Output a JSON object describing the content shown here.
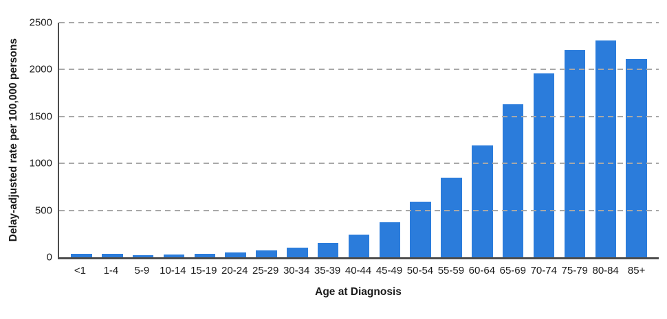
{
  "chart_data": {
    "type": "bar",
    "title": "",
    "xlabel": "Age at Diagnosis",
    "ylabel": "Delay-adjusted rate per 100,000 persons",
    "categories": [
      "<1",
      "1-4",
      "5-9",
      "10-14",
      "15-19",
      "20-24",
      "25-29",
      "30-34",
      "35-39",
      "40-44",
      "45-49",
      "50-54",
      "55-59",
      "60-64",
      "65-69",
      "70-74",
      "75-79",
      "80-84",
      "85+"
    ],
    "values": [
      40,
      35,
      25,
      30,
      37,
      50,
      75,
      105,
      155,
      240,
      375,
      590,
      850,
      1190,
      1630,
      1960,
      2210,
      2310,
      2115
    ],
    "ylim": [
      0,
      2500
    ],
    "yticks": [
      0,
      500,
      1000,
      1500,
      2000,
      2500
    ],
    "grid": "horizontal-dashed",
    "legend": "none",
    "colors": {
      "bar": "#2b7cdb",
      "gridline": "#a8a8a8",
      "axis": "#4d4d4d",
      "text": "#1a1a1a",
      "background": "#ffffff"
    }
  }
}
